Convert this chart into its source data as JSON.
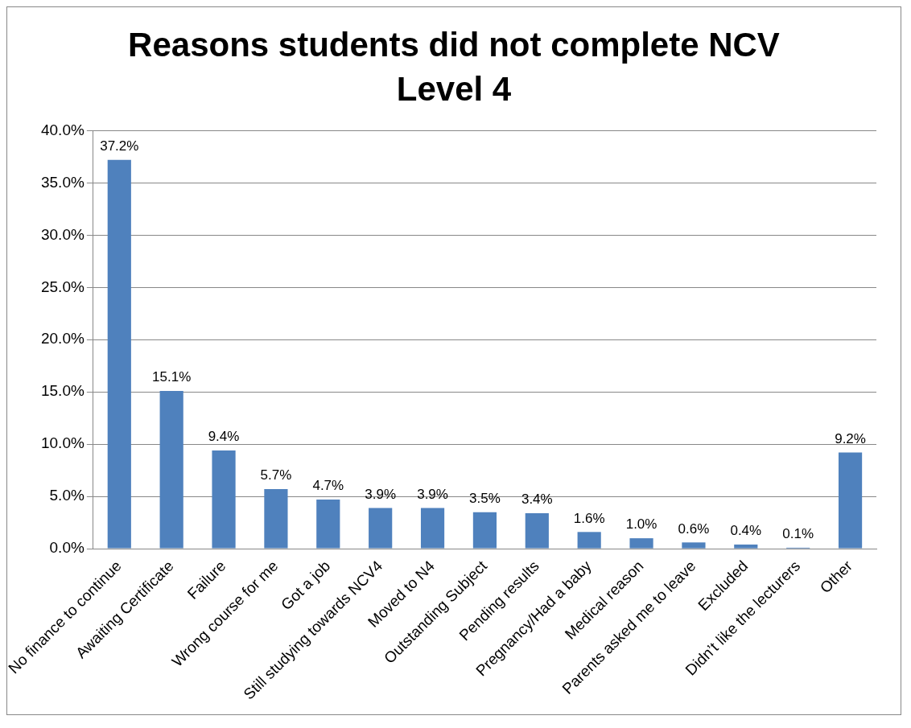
{
  "chart_data": {
    "type": "bar",
    "title": "Reasons students did not complete NCV Level 4",
    "categories": [
      "No finance to continue",
      "Awaiting Certificate",
      "Failure",
      "Wrong course for me",
      "Got a job",
      "Still studying towards NCV4",
      "Moved to N4",
      "Outstanding Subject",
      "Pending results",
      "Pregnancy/Had a baby",
      "Medical reason",
      "Parents asked me to leave",
      "Excluded",
      "Didn’t like the lecturers",
      "Other"
    ],
    "values": [
      37.2,
      15.1,
      9.4,
      5.7,
      4.7,
      3.9,
      3.9,
      3.5,
      3.4,
      1.6,
      1.0,
      0.6,
      0.4,
      0.1,
      9.2
    ],
    "value_labels": [
      "37.2%",
      "15.1%",
      "9.4%",
      "5.7%",
      "4.7%",
      "3.9%",
      "3.9%",
      "3.5%",
      "3.4%",
      "1.6%",
      "1.0%",
      "0.6%",
      "0.4%",
      "0.1%",
      "9.2%"
    ],
    "color": "#4f81bd",
    "ylim": [
      0,
      40
    ],
    "yticks": [
      {
        "value": 0,
        "label": "0.0%"
      },
      {
        "value": 5,
        "label": "5.0%"
      },
      {
        "value": 10,
        "label": "10.0%"
      },
      {
        "value": 15,
        "label": "15.0%"
      },
      {
        "value": 20,
        "label": "20.0%"
      },
      {
        "value": 25,
        "label": "25.0%"
      },
      {
        "value": 30,
        "label": "30.0%"
      },
      {
        "value": 35,
        "label": "35.0%"
      },
      {
        "value": 40,
        "label": "40.0%"
      }
    ],
    "grid": "y",
    "legend": false
  }
}
